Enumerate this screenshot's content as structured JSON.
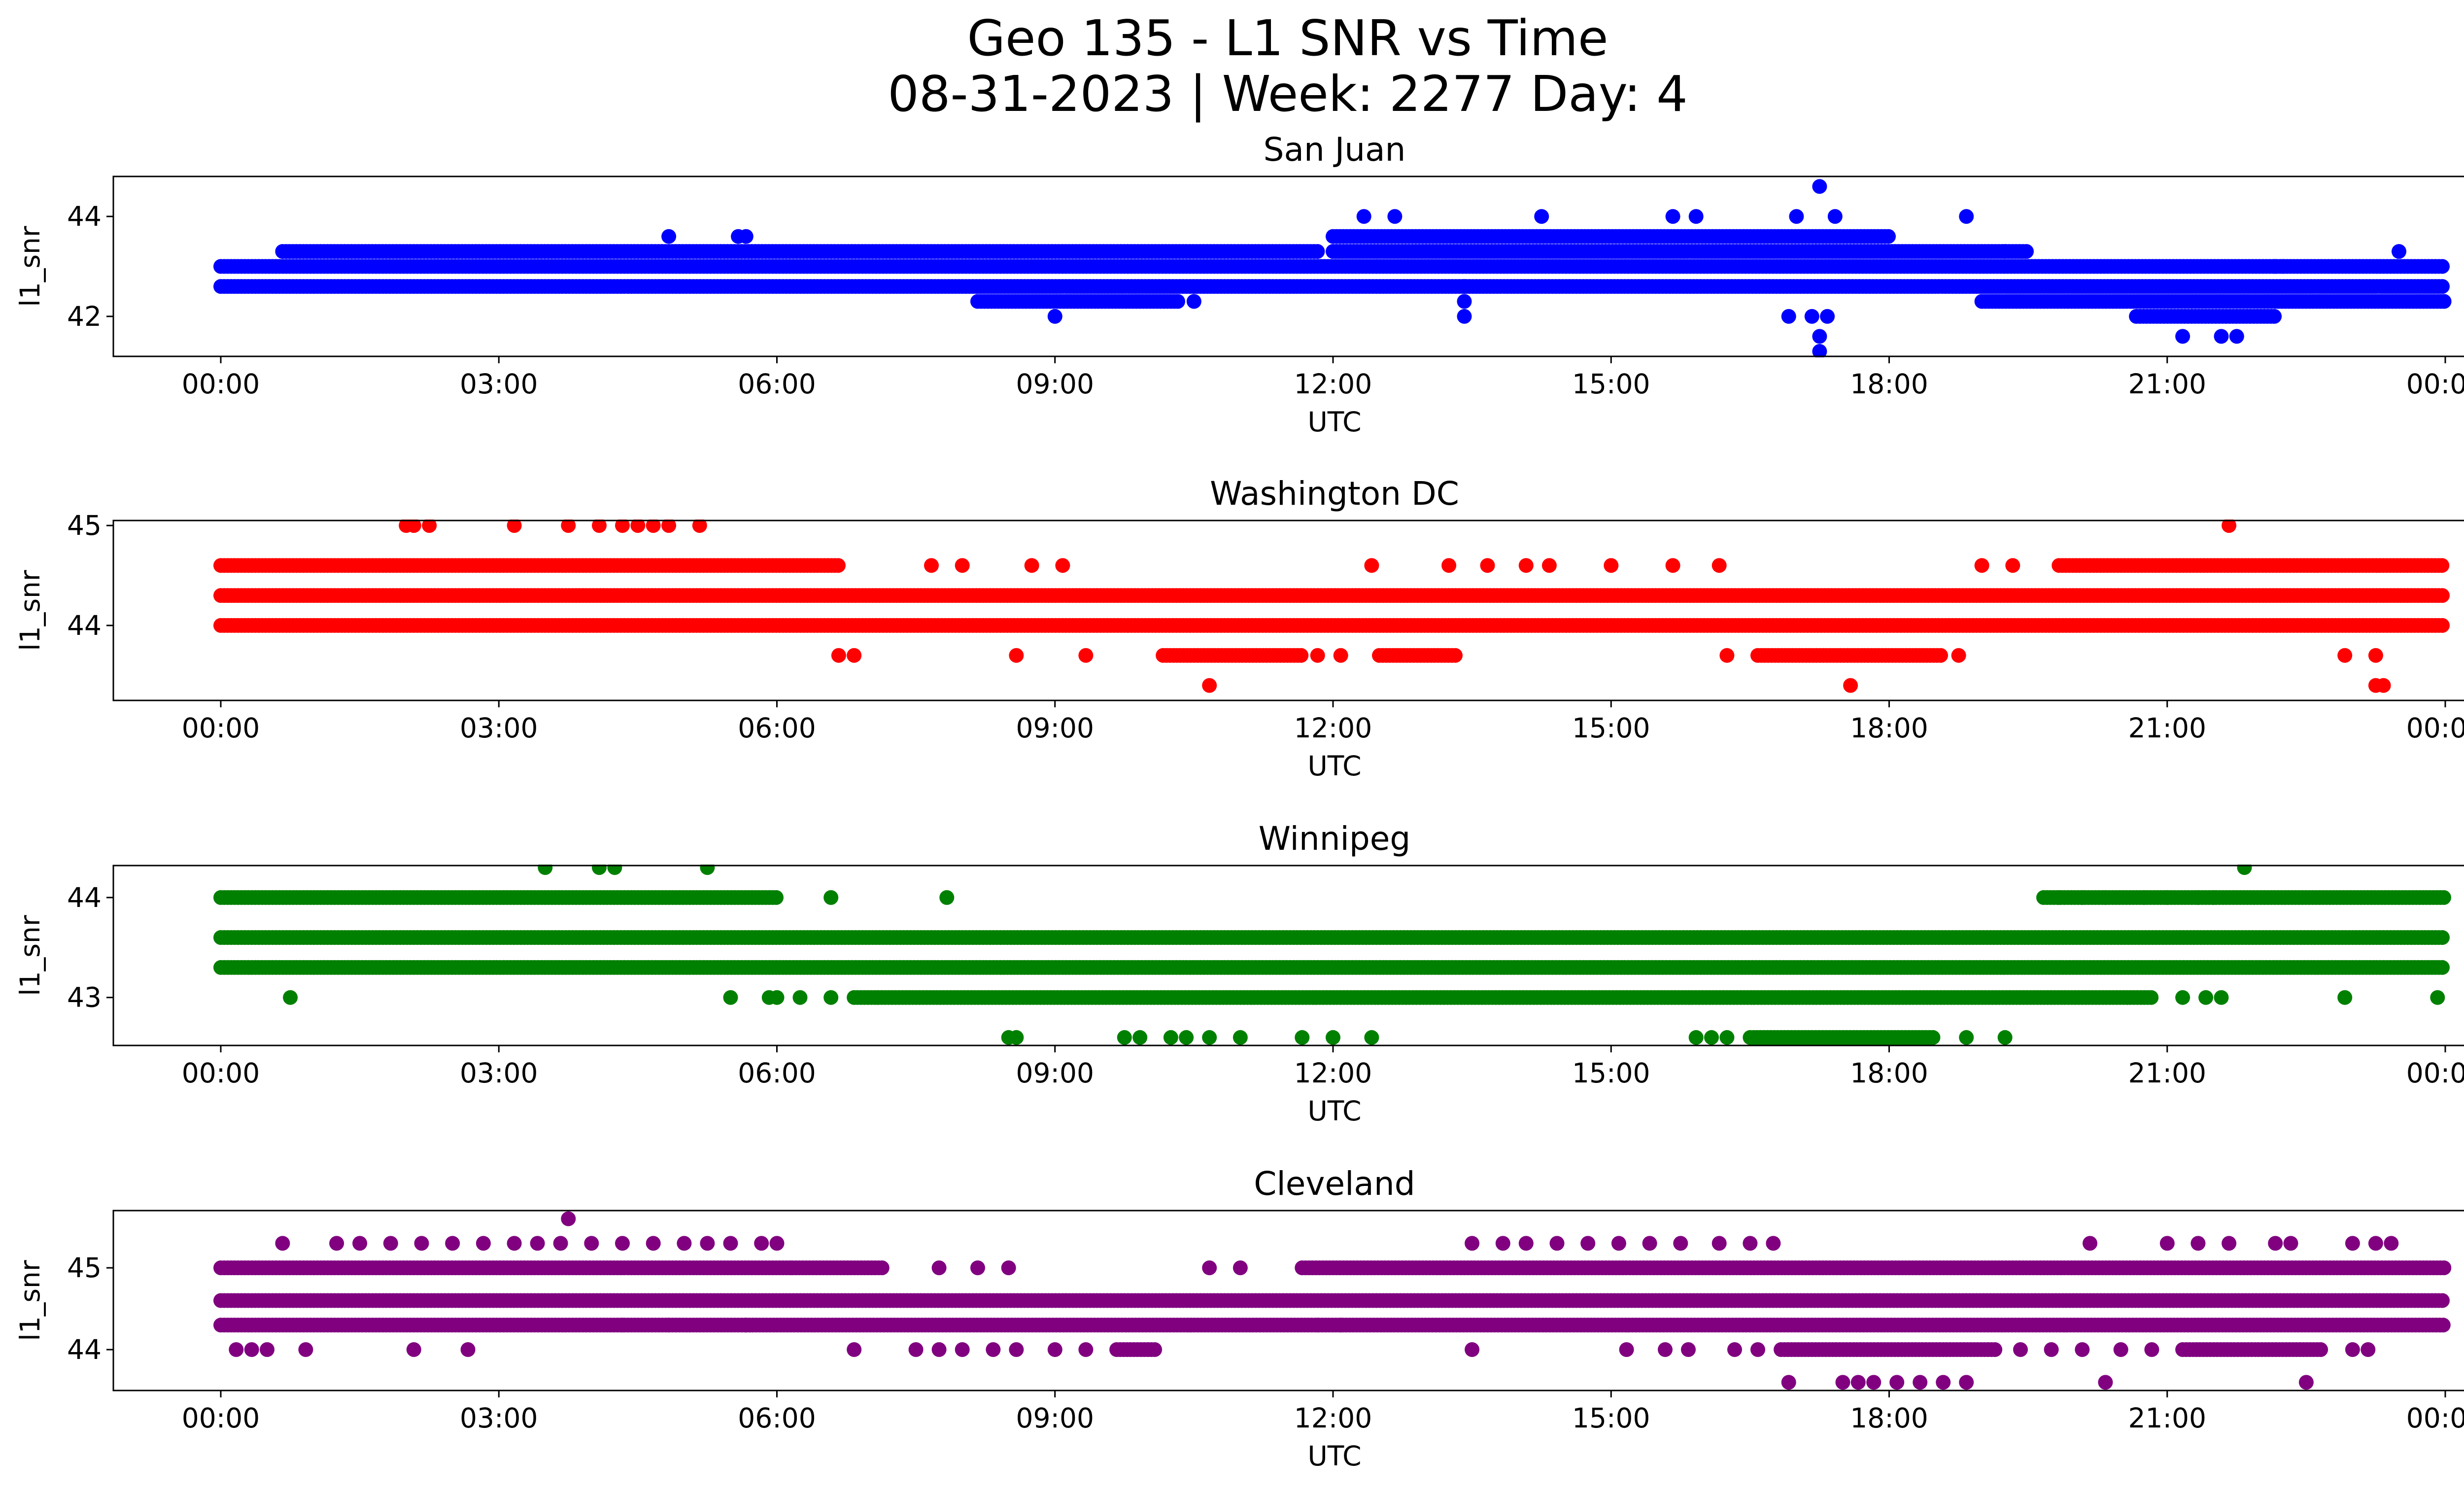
{
  "figure": {
    "title_line1": "Geo 135 - L1 SNR vs Time",
    "title_line2": "08-31-2023 | Week: 2277 Day: 4"
  },
  "chart_data": [
    {
      "type": "scatter",
      "title": "San Juan",
      "xlabel": "UTC",
      "ylabel": "l1_snr",
      "color": "#0000ff",
      "xlim": [
        "2023-08-31T00:00",
        "2023-09-01T00:00"
      ],
      "xticks": [
        "00:00",
        "03:00",
        "06:00",
        "09:00",
        "12:00",
        "15:00",
        "18:00",
        "21:00",
        "00:00"
      ],
      "ylim": [
        41.2,
        44.8
      ],
      "yticks": [
        42,
        44
      ],
      "grid": false,
      "bands": [
        {
          "snr": 43.0,
          "from": "00:00",
          "to": "24:00"
        },
        {
          "snr": 43.3,
          "from": "00:40",
          "to": "11:50"
        },
        {
          "snr": 42.6,
          "from": "00:00",
          "to": "24:00"
        },
        {
          "snr": 42.3,
          "from": "08:10",
          "to": "10:20"
        },
        {
          "snr": 43.3,
          "from": "12:00",
          "to": "19:30"
        },
        {
          "snr": 43.6,
          "from": "12:00",
          "to": "18:00"
        },
        {
          "snr": 42.3,
          "from": "19:00",
          "to": "24:00"
        },
        {
          "snr": 42.0,
          "from": "20:40",
          "to": "22:10"
        }
      ],
      "points": [
        {
          "time": "04:50",
          "snr": 43.6
        },
        {
          "time": "05:35",
          "snr": 43.6
        },
        {
          "time": "05:40",
          "snr": 43.6
        },
        {
          "time": "09:00",
          "snr": 42.0
        },
        {
          "time": "10:30",
          "snr": 42.3
        },
        {
          "time": "12:20",
          "snr": 44.0
        },
        {
          "time": "12:40",
          "snr": 44.0
        },
        {
          "time": "14:15",
          "snr": 44.0
        },
        {
          "time": "15:40",
          "snr": 44.0
        },
        {
          "time": "15:55",
          "snr": 44.0
        },
        {
          "time": "13:25",
          "snr": 42.6
        },
        {
          "time": "13:25",
          "snr": 42.3
        },
        {
          "time": "13:25",
          "snr": 42.0
        },
        {
          "time": "17:00",
          "snr": 44.0
        },
        {
          "time": "17:15",
          "snr": 44.6
        },
        {
          "time": "17:25",
          "snr": 44.0
        },
        {
          "time": "16:55",
          "snr": 42.0
        },
        {
          "time": "17:10",
          "snr": 42.0
        },
        {
          "time": "17:15",
          "snr": 41.6
        },
        {
          "time": "17:15",
          "snr": 41.3
        },
        {
          "time": "17:20",
          "snr": 42.0
        },
        {
          "time": "18:50",
          "snr": 44.0
        },
        {
          "time": "19:15",
          "snr": 43.3
        },
        {
          "time": "21:45",
          "snr": 41.6
        },
        {
          "time": "22:10",
          "snr": 43.0
        },
        {
          "time": "22:15",
          "snr": 43.0
        },
        {
          "time": "23:30",
          "snr": 43.3
        },
        {
          "time": "21:35",
          "snr": 41.6
        },
        {
          "time": "21:10",
          "snr": 41.6
        }
      ]
    },
    {
      "type": "scatter",
      "title": "Washington DC",
      "xlabel": "UTC",
      "ylabel": "l1_snr",
      "color": "#ff0000",
      "xlim": [
        "2023-08-31T00:00",
        "2023-09-01T00:00"
      ],
      "xticks": [
        "00:00",
        "03:00",
        "06:00",
        "09:00",
        "12:00",
        "15:00",
        "18:00",
        "21:00",
        "00:00"
      ],
      "ylim": [
        43.25,
        45.05
      ],
      "yticks": [
        44,
        45
      ],
      "grid": false,
      "bands": [
        {
          "snr": 44.3,
          "from": "00:00",
          "to": "24:00"
        },
        {
          "snr": 44.6,
          "from": "00:00",
          "to": "06:40"
        },
        {
          "snr": 44.0,
          "from": "00:00",
          "to": "24:00"
        },
        {
          "snr": 44.6,
          "from": "19:50",
          "to": "24:00"
        },
        {
          "snr": 43.7,
          "from": "10:10",
          "to": "11:40"
        },
        {
          "snr": 43.7,
          "from": "12:30",
          "to": "13:20"
        },
        {
          "snr": 43.7,
          "from": "16:35",
          "to": "18:35"
        }
      ],
      "points": [
        {
          "time": "02:00",
          "snr": 45.0
        },
        {
          "time": "02:05",
          "snr": 45.0
        },
        {
          "time": "02:15",
          "snr": 45.0
        },
        {
          "time": "03:10",
          "snr": 45.0
        },
        {
          "time": "03:45",
          "snr": 45.0
        },
        {
          "time": "04:05",
          "snr": 45.0
        },
        {
          "time": "04:20",
          "snr": 45.0
        },
        {
          "time": "04:30",
          "snr": 45.0
        },
        {
          "time": "04:40",
          "snr": 45.0
        },
        {
          "time": "04:50",
          "snr": 45.0
        },
        {
          "time": "05:10",
          "snr": 45.0
        },
        {
          "time": "21:40",
          "snr": 45.0
        },
        {
          "time": "06:40",
          "snr": 43.7
        },
        {
          "time": "06:50",
          "snr": 43.7
        },
        {
          "time": "08:35",
          "snr": 43.7
        },
        {
          "time": "09:20",
          "snr": 43.7
        },
        {
          "time": "10:40",
          "snr": 43.4
        },
        {
          "time": "11:50",
          "snr": 43.7
        },
        {
          "time": "12:05",
          "snr": 43.7
        },
        {
          "time": "16:15",
          "snr": 43.7
        },
        {
          "time": "17:35",
          "snr": 43.4
        },
        {
          "time": "18:45",
          "snr": 43.7
        },
        {
          "time": "22:55",
          "snr": 43.7
        },
        {
          "time": "23:15",
          "snr": 43.7
        },
        {
          "time": "23:15",
          "snr": 43.4
        },
        {
          "time": "23:20",
          "snr": 43.4
        },
        {
          "time": "08:00",
          "snr": 44.6
        },
        {
          "time": "07:40",
          "snr": 44.6
        },
        {
          "time": "08:45",
          "snr": 44.6
        },
        {
          "time": "09:05",
          "snr": 44.6
        },
        {
          "time": "12:25",
          "snr": 44.6
        },
        {
          "time": "13:15",
          "snr": 44.6
        },
        {
          "time": "13:40",
          "snr": 44.6
        },
        {
          "time": "14:05",
          "snr": 44.6
        },
        {
          "time": "14:20",
          "snr": 44.6
        },
        {
          "time": "15:00",
          "snr": 44.6
        },
        {
          "time": "15:40",
          "snr": 44.6
        },
        {
          "time": "16:10",
          "snr": 44.6
        },
        {
          "time": "19:00",
          "snr": 44.6
        },
        {
          "time": "19:20",
          "snr": 44.6
        }
      ]
    },
    {
      "type": "scatter",
      "title": "Winnipeg",
      "xlabel": "UTC",
      "ylabel": "l1_snr",
      "color": "#008000",
      "xlim": [
        "2023-08-31T00:00",
        "2023-09-01T00:00"
      ],
      "xticks": [
        "00:00",
        "03:00",
        "06:00",
        "09:00",
        "12:00",
        "15:00",
        "18:00",
        "21:00",
        "00:00"
      ],
      "ylim": [
        42.52,
        44.32
      ],
      "yticks": [
        43,
        44
      ],
      "grid": false,
      "bands": [
        {
          "snr": 43.6,
          "from": "00:00",
          "to": "24:00"
        },
        {
          "snr": 43.3,
          "from": "00:00",
          "to": "24:00"
        },
        {
          "snr": 44.0,
          "from": "00:00",
          "to": "06:00"
        },
        {
          "snr": 43.0,
          "from": "06:50",
          "to": "20:50"
        },
        {
          "snr": 44.0,
          "from": "19:40",
          "to": "24:00"
        },
        {
          "snr": 42.6,
          "from": "16:30",
          "to": "18:30"
        }
      ],
      "points": [
        {
          "time": "03:30",
          "snr": 44.3
        },
        {
          "time": "04:05",
          "snr": 44.3
        },
        {
          "time": "04:15",
          "snr": 44.3
        },
        {
          "time": "05:15",
          "snr": 44.3
        },
        {
          "time": "21:50",
          "snr": 44.3
        },
        {
          "time": "00:45",
          "snr": 43.0
        },
        {
          "time": "05:30",
          "snr": 43.0
        },
        {
          "time": "05:55",
          "snr": 43.0
        },
        {
          "time": "06:00",
          "snr": 43.0
        },
        {
          "time": "06:15",
          "snr": 43.0
        },
        {
          "time": "06:35",
          "snr": 43.0
        },
        {
          "time": "21:10",
          "snr": 43.0
        },
        {
          "time": "21:25",
          "snr": 43.0
        },
        {
          "time": "21:35",
          "snr": 43.0
        },
        {
          "time": "22:55",
          "snr": 43.0
        },
        {
          "time": "23:55",
          "snr": 43.0
        },
        {
          "time": "06:35",
          "snr": 44.0
        },
        {
          "time": "07:50",
          "snr": 44.0
        },
        {
          "time": "08:30",
          "snr": 42.6
        },
        {
          "time": "08:35",
          "snr": 42.6
        },
        {
          "time": "09:45",
          "snr": 42.6
        },
        {
          "time": "09:55",
          "snr": 42.6
        },
        {
          "time": "10:15",
          "snr": 42.6
        },
        {
          "time": "10:25",
          "snr": 42.6
        },
        {
          "time": "10:40",
          "snr": 42.6
        },
        {
          "time": "11:00",
          "snr": 42.6
        },
        {
          "time": "11:40",
          "snr": 42.6
        },
        {
          "time": "12:00",
          "snr": 42.6
        },
        {
          "time": "12:25",
          "snr": 42.6
        },
        {
          "time": "15:55",
          "snr": 42.6
        },
        {
          "time": "16:05",
          "snr": 42.6
        },
        {
          "time": "16:15",
          "snr": 42.6
        },
        {
          "time": "18:50",
          "snr": 42.6
        },
        {
          "time": "19:15",
          "snr": 42.6
        },
        {
          "time": "19:50",
          "snr": 44.0
        },
        {
          "time": "20:05",
          "snr": 44.0
        },
        {
          "time": "20:20",
          "snr": 44.0
        },
        {
          "time": "20:45",
          "snr": 44.0
        },
        {
          "time": "21:00",
          "snr": 44.0
        },
        {
          "time": "21:20",
          "snr": 44.0
        },
        {
          "time": "21:30",
          "snr": 44.0
        }
      ]
    },
    {
      "type": "scatter",
      "title": "Cleveland",
      "xlabel": "UTC",
      "ylabel": "l1_snr",
      "color": "#800080",
      "xlim": [
        "2023-08-31T00:00",
        "2023-09-01T00:00"
      ],
      "xticks": [
        "00:00",
        "03:00",
        "06:00",
        "09:00",
        "12:00",
        "15:00",
        "18:00",
        "21:00",
        "00:00"
      ],
      "ylim": [
        43.5,
        45.7
      ],
      "yticks": [
        44,
        45
      ],
      "grid": false,
      "bands": [
        {
          "snr": 44.6,
          "from": "00:00",
          "to": "24:00"
        },
        {
          "snr": 45.0,
          "from": "00:00",
          "to": "06:10"
        },
        {
          "snr": 44.3,
          "from": "00:00",
          "to": "05:40"
        },
        {
          "snr": 44.3,
          "from": "05:40",
          "to": "24:00"
        },
        {
          "snr": 45.0,
          "from": "11:40",
          "to": "24:00"
        },
        {
          "snr": 44.0,
          "from": "16:50",
          "to": "19:10"
        },
        {
          "snr": 44.0,
          "from": "21:10",
          "to": "22:40"
        },
        {
          "snr": 45.0,
          "from": "06:10",
          "to": "07:10"
        },
        {
          "snr": 44.0,
          "from": "09:40",
          "to": "10:05"
        }
      ],
      "points": [
        {
          "time": "03:45",
          "snr": 45.6
        },
        {
          "time": "00:40",
          "snr": 45.3
        },
        {
          "time": "01:15",
          "snr": 45.3
        },
        {
          "time": "01:30",
          "snr": 45.3
        },
        {
          "time": "01:50",
          "snr": 45.3
        },
        {
          "time": "02:10",
          "snr": 45.3
        },
        {
          "time": "02:30",
          "snr": 45.3
        },
        {
          "time": "02:50",
          "snr": 45.3
        },
        {
          "time": "03:10",
          "snr": 45.3
        },
        {
          "time": "03:25",
          "snr": 45.3
        },
        {
          "time": "03:40",
          "snr": 45.3
        },
        {
          "time": "04:00",
          "snr": 45.3
        },
        {
          "time": "04:20",
          "snr": 45.3
        },
        {
          "time": "04:40",
          "snr": 45.3
        },
        {
          "time": "05:00",
          "snr": 45.3
        },
        {
          "time": "05:15",
          "snr": 45.3
        },
        {
          "time": "05:30",
          "snr": 45.3
        },
        {
          "time": "05:50",
          "snr": 45.3
        },
        {
          "time": "06:00",
          "snr": 45.3
        },
        {
          "time": "13:30",
          "snr": 45.3
        },
        {
          "time": "13:50",
          "snr": 45.3
        },
        {
          "time": "14:05",
          "snr": 45.3
        },
        {
          "time": "14:25",
          "snr": 45.3
        },
        {
          "time": "14:45",
          "snr": 45.3
        },
        {
          "time": "15:05",
          "snr": 45.3
        },
        {
          "time": "15:25",
          "snr": 45.3
        },
        {
          "time": "15:45",
          "snr": 45.3
        },
        {
          "time": "16:10",
          "snr": 45.3
        },
        {
          "time": "16:30",
          "snr": 45.3
        },
        {
          "time": "16:45",
          "snr": 45.3
        },
        {
          "time": "20:10",
          "snr": 45.3
        },
        {
          "time": "21:00",
          "snr": 45.3
        },
        {
          "time": "21:20",
          "snr": 45.3
        },
        {
          "time": "21:40",
          "snr": 45.3
        },
        {
          "time": "22:10",
          "snr": 45.3
        },
        {
          "time": "22:20",
          "snr": 45.3
        },
        {
          "time": "23:00",
          "snr": 45.3
        },
        {
          "time": "23:15",
          "snr": 45.3
        },
        {
          "time": "23:25",
          "snr": 45.3
        },
        {
          "time": "00:10",
          "snr": 44.0
        },
        {
          "time": "00:20",
          "snr": 44.0
        },
        {
          "time": "00:30",
          "snr": 44.0
        },
        {
          "time": "00:55",
          "snr": 44.0
        },
        {
          "time": "02:05",
          "snr": 44.0
        },
        {
          "time": "02:40",
          "snr": 44.0
        },
        {
          "time": "06:50",
          "snr": 44.0
        },
        {
          "time": "07:30",
          "snr": 44.0
        },
        {
          "time": "07:45",
          "snr": 44.0
        },
        {
          "time": "08:00",
          "snr": 44.0
        },
        {
          "time": "08:20",
          "snr": 44.0
        },
        {
          "time": "08:35",
          "snr": 44.0
        },
        {
          "time": "09:00",
          "snr": 44.0
        },
        {
          "time": "09:20",
          "snr": 44.0
        },
        {
          "time": "13:30",
          "snr": 44.0
        },
        {
          "time": "15:10",
          "snr": 44.0
        },
        {
          "time": "15:35",
          "snr": 44.0
        },
        {
          "time": "15:50",
          "snr": 44.0
        },
        {
          "time": "16:20",
          "snr": 44.0
        },
        {
          "time": "16:35",
          "snr": 44.0
        },
        {
          "time": "19:25",
          "snr": 44.0
        },
        {
          "time": "19:45",
          "snr": 44.0
        },
        {
          "time": "20:05",
          "snr": 44.0
        },
        {
          "time": "20:30",
          "snr": 44.0
        },
        {
          "time": "20:50",
          "snr": 44.0
        },
        {
          "time": "23:00",
          "snr": 44.0
        },
        {
          "time": "23:10",
          "snr": 44.0
        },
        {
          "time": "16:55",
          "snr": 43.6
        },
        {
          "time": "17:30",
          "snr": 43.6
        },
        {
          "time": "17:40",
          "snr": 43.6
        },
        {
          "time": "17:50",
          "snr": 43.6
        },
        {
          "time": "18:05",
          "snr": 43.6
        },
        {
          "time": "18:20",
          "snr": 43.6
        },
        {
          "time": "18:35",
          "snr": 43.6
        },
        {
          "time": "18:50",
          "snr": 43.6
        },
        {
          "time": "20:20",
          "snr": 43.6
        },
        {
          "time": "22:30",
          "snr": 43.6
        },
        {
          "time": "10:40",
          "snr": 45.0
        },
        {
          "time": "11:00",
          "snr": 45.0
        },
        {
          "time": "07:45",
          "snr": 45.0
        },
        {
          "time": "08:10",
          "snr": 45.0
        },
        {
          "time": "08:30",
          "snr": 45.0
        },
        {
          "time": "05:40",
          "snr": 44.3
        },
        {
          "time": "04:50",
          "snr": 44.3
        },
        {
          "time": "04:20",
          "snr": 44.3
        },
        {
          "time": "11:50",
          "snr": 44.3
        },
        {
          "time": "12:05",
          "snr": 44.3
        }
      ]
    }
  ]
}
